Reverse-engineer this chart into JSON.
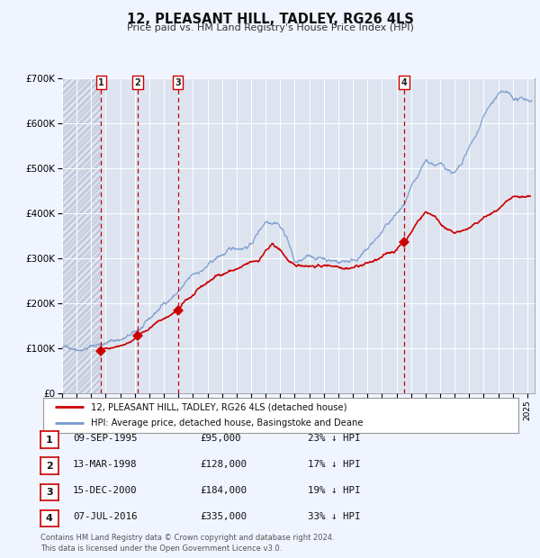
{
  "title": "12, PLEASANT HILL, TADLEY, RG26 4LS",
  "subtitle": "Price paid vs. HM Land Registry's House Price Index (HPI)",
  "ylim": [
    0,
    700000
  ],
  "xlim_start": 1993.0,
  "xlim_end": 2025.5,
  "background_color": "#f0f4ff",
  "plot_bg_color": "#dde4f0",
  "grid_color": "#c8d0e0",
  "sale_color": "#cc0000",
  "hpi_color": "#7799cc",
  "hatch_color": "#c0c8d8",
  "purchases": [
    {
      "num": 1,
      "date_dec": 1995.69,
      "price": 95000,
      "label": "1"
    },
    {
      "num": 2,
      "date_dec": 1998.19,
      "price": 128000,
      "label": "2"
    },
    {
      "num": 3,
      "date_dec": 2000.96,
      "price": 184000,
      "label": "3"
    },
    {
      "num": 4,
      "date_dec": 2016.51,
      "price": 335000,
      "label": "4"
    }
  ],
  "vline_color": "#cc0000",
  "legend_entries": [
    "12, PLEASANT HILL, TADLEY, RG26 4LS (detached house)",
    "HPI: Average price, detached house, Basingstoke and Deane"
  ],
  "table_rows": [
    {
      "num": "1",
      "date": "09-SEP-1995",
      "price": "£95,000",
      "pct": "23% ↓ HPI"
    },
    {
      "num": "2",
      "date": "13-MAR-1998",
      "price": "£128,000",
      "pct": "17% ↓ HPI"
    },
    {
      "num": "3",
      "date": "15-DEC-2000",
      "price": "£184,000",
      "pct": "19% ↓ HPI"
    },
    {
      "num": "4",
      "date": "07-JUL-2016",
      "price": "£335,000",
      "pct": "33% ↓ HPI"
    }
  ],
  "footer": "Contains HM Land Registry data © Crown copyright and database right 2024.\nThis data is licensed under the Open Government Licence v3.0.",
  "yticks": [
    0,
    100000,
    200000,
    300000,
    400000,
    500000,
    600000,
    700000
  ],
  "ytick_labels": [
    "£0",
    "£100K",
    "£200K",
    "£300K",
    "£400K",
    "£500K",
    "£600K",
    "£700K"
  ]
}
